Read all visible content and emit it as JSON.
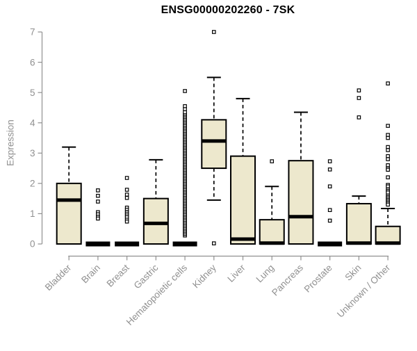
{
  "chart_data": {
    "type": "boxplot",
    "title": "ENSG00000202260 - 7SK",
    "ylabel": "Expression",
    "xlabel": "",
    "ylim": [
      0,
      7
    ],
    "yticks": [
      0,
      1,
      2,
      3,
      4,
      5,
      6,
      7
    ],
    "grid": false,
    "legend": "none",
    "box_fill_color": "#EDE8CD",
    "box_line_color": "#000000",
    "axis_color": "#909090",
    "outlier_marker": "open-square",
    "categories": [
      "Bladder",
      "Brain",
      "Breast",
      "Gastric",
      "Hematopoietic cells",
      "Kidney",
      "Liver",
      "Lung",
      "Pancreas",
      "Prostate",
      "Skin",
      "Unknown / Other"
    ],
    "series": [
      {
        "category": "Bladder",
        "q1": 0,
        "median": 1.45,
        "q3": 2.0,
        "whisker_low": 0,
        "whisker_high": 3.2,
        "outliers": []
      },
      {
        "category": "Brain",
        "q1": 0,
        "median": 0,
        "q3": 0,
        "whisker_low": 0,
        "whisker_high": 0,
        "outliers": [
          1.77,
          1.59,
          1.4,
          1.05,
          0.98,
          0.9,
          0.84
        ]
      },
      {
        "category": "Breast",
        "q1": 0,
        "median": 0,
        "q3": 0,
        "whisker_low": 0,
        "whisker_high": 0,
        "outliers": [
          2.18,
          1.79,
          1.63,
          1.52,
          1.2,
          1.13,
          1.06,
          1.0,
          0.94,
          0.88,
          0.8,
          0.74
        ]
      },
      {
        "category": "Gastric",
        "q1": 0,
        "median": 0.68,
        "q3": 1.5,
        "whisker_low": 0,
        "whisker_high": 2.78,
        "outliers": []
      },
      {
        "category": "Hematopoietic cells",
        "q1": 0,
        "median": 0,
        "q3": 0,
        "whisker_low": 0,
        "whisker_high": 0,
        "outliers": [
          5.05,
          4.55,
          4.45
        ],
        "outlier_band": {
          "min": 0.28,
          "max": 4.35,
          "count": 80
        }
      },
      {
        "category": "Kidney",
        "q1": 2.5,
        "median": 3.4,
        "q3": 4.1,
        "whisker_low": 1.45,
        "whisker_high": 5.5,
        "outliers": [
          7.0,
          0.02
        ]
      },
      {
        "category": "Liver",
        "q1": 0,
        "median": 0.16,
        "q3": 2.9,
        "whisker_low": 0,
        "whisker_high": 4.8,
        "outliers": []
      },
      {
        "category": "Lung",
        "q1": 0,
        "median": 0.03,
        "q3": 0.8,
        "whisker_low": 0,
        "whisker_high": 1.9,
        "outliers": [
          2.73
        ]
      },
      {
        "category": "Pancreas",
        "q1": 0,
        "median": 0.9,
        "q3": 2.75,
        "whisker_low": 0,
        "whisker_high": 4.35,
        "outliers": []
      },
      {
        "category": "Prostate",
        "q1": 0,
        "median": 0,
        "q3": 0,
        "whisker_low": 0,
        "whisker_high": 0,
        "outliers": [
          2.73,
          2.46,
          1.9,
          1.12,
          0.77
        ]
      },
      {
        "category": "Skin",
        "q1": 0,
        "median": 0.03,
        "q3": 1.33,
        "whisker_low": 0,
        "whisker_high": 1.58,
        "outliers": [
          5.07,
          4.82,
          4.18
        ]
      },
      {
        "category": "Unknown / Other",
        "q1": 0,
        "median": 0.03,
        "q3": 0.58,
        "whisker_low": 0,
        "whisker_high": 1.17,
        "outliers": [
          5.3,
          3.9,
          3.6,
          3.5,
          3.2,
          3.1,
          2.9,
          2.8,
          2.6,
          2.5,
          2.45,
          2.2,
          1.95,
          1.9,
          1.8,
          1.75,
          1.7,
          1.6,
          1.55,
          1.5,
          1.45,
          1.4,
          1.35,
          1.3
        ]
      }
    ]
  }
}
